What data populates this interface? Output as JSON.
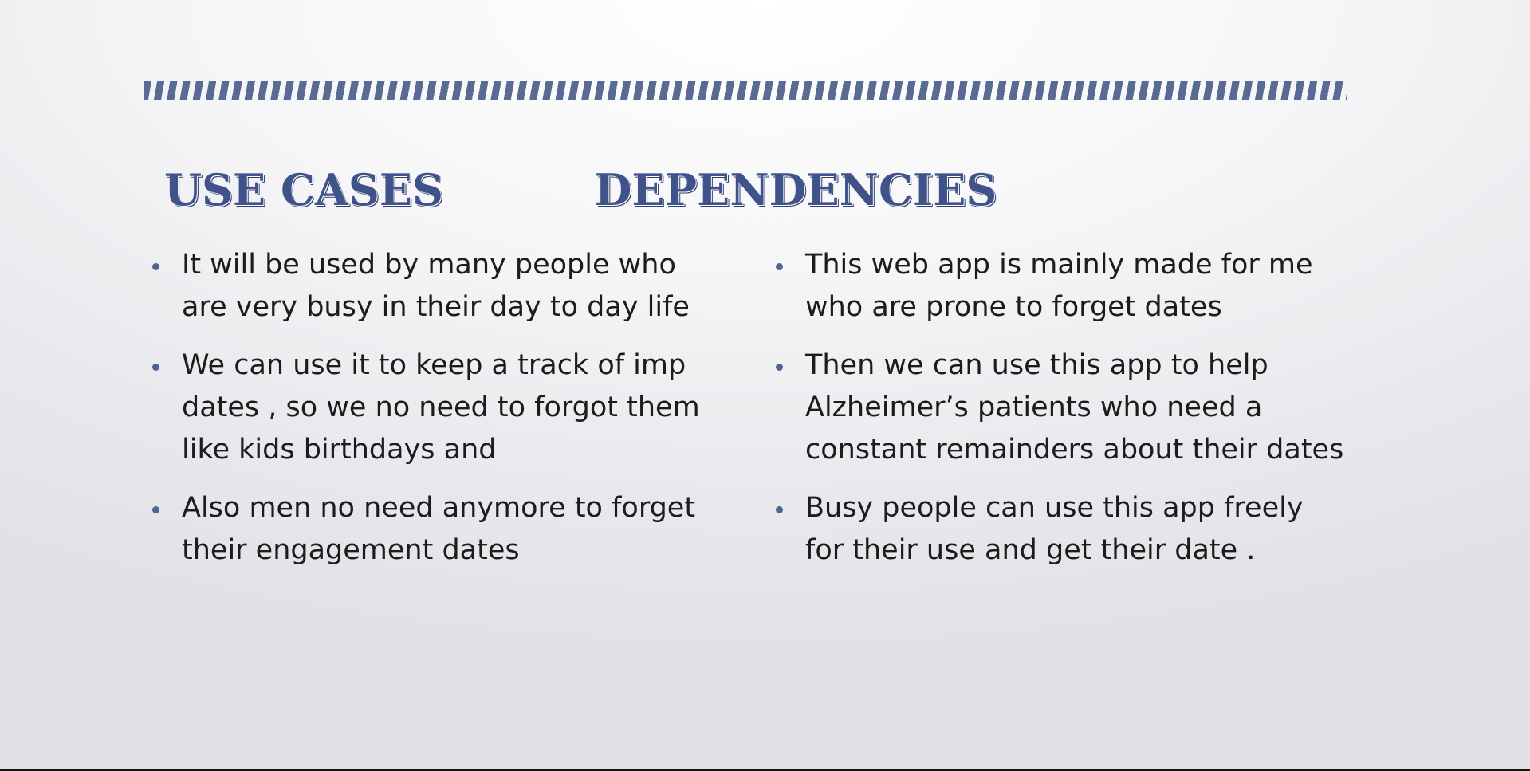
{
  "slide": {
    "left_column": {
      "heading": "USE CASES",
      "bullets": [
        "It will be used by many people who are very busy in their day to day life",
        "We can use it to keep a track of imp dates , so we no need to forgot them like kids birthdays and",
        "Also men no need anymore to forget their engagement dates"
      ]
    },
    "right_column": {
      "heading": "DEPENDENCIES",
      "bullets": [
        "This web app is mainly made for me who are prone to forget dates",
        "Then we can use this app to help Alzheimer’s patients who need a constant remainders about their dates",
        "Busy people can use this app freely for their use and get their date ."
      ]
    },
    "colors": {
      "heading": "#3f5289",
      "bullet_dot": "#4f6294",
      "stripe": "#5a6b93",
      "text": "#1c1c1c"
    }
  }
}
